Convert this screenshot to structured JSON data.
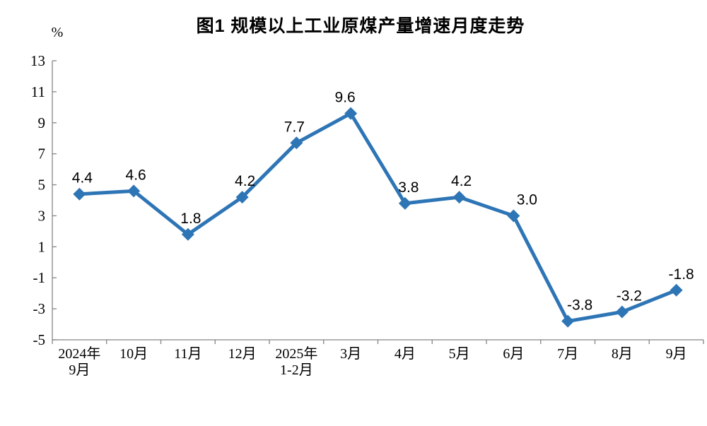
{
  "page": {
    "background_color": "#ffffff"
  },
  "chart_data": {
    "type": "line",
    "title": "图1  规模以上工业原煤产量增速月度走势",
    "unit_label": "%",
    "xlabel": "",
    "ylabel": "%",
    "categories": [
      [
        "2024年",
        "9月"
      ],
      [
        "10月"
      ],
      [
        "11月"
      ],
      [
        "12月"
      ],
      [
        "2025年",
        "1-2月"
      ],
      [
        "3月"
      ],
      [
        "4月"
      ],
      [
        "5月"
      ],
      [
        "6月"
      ],
      [
        "7月"
      ],
      [
        "8月"
      ],
      [
        "9月"
      ]
    ],
    "series": [
      {
        "name": "规模以上工业原煤产量增速",
        "values": [
          4.4,
          4.6,
          1.8,
          4.2,
          7.7,
          9.6,
          3.8,
          4.2,
          3.0,
          -3.8,
          -3.2,
          -1.8
        ],
        "point_labels": [
          "4.4",
          "4.6",
          "1.8",
          "4.2",
          "7.7",
          "9.6",
          "3.8",
          "4.2",
          "3.0",
          "-3.8",
          "-3.2",
          "-1.8"
        ]
      }
    ],
    "ylim": [
      -5,
      13
    ],
    "ytick_step": 2,
    "ytick_labels": [
      "-5",
      "-3",
      "-1",
      "1",
      "3",
      "5",
      "7",
      "9",
      "11",
      "13"
    ],
    "grid": false,
    "legend_position": "none",
    "marker_shape": "diamond",
    "colors": {
      "line": "#2E75B6",
      "marker": "#2E75B6",
      "axis": "#858585",
      "text": "#000000",
      "background": "#ffffff"
    }
  }
}
